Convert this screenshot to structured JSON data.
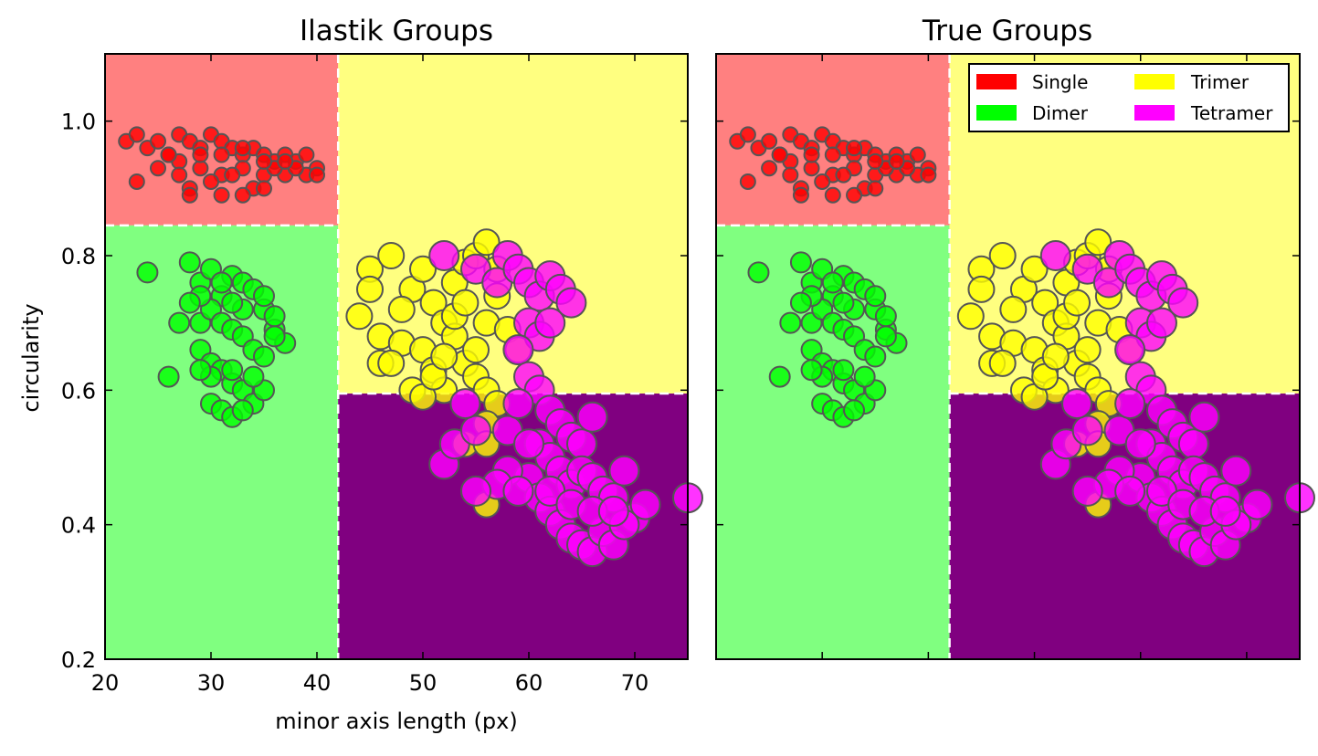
{
  "chart_data": [
    {
      "type": "scatter",
      "title": "Ilastik Groups",
      "xlabel": "minor axis length (px)",
      "ylabel": "circularity",
      "xlim": [
        20,
        75
      ],
      "ylim": [
        0.2,
        1.1
      ],
      "xticks": [
        "20",
        "30",
        "40",
        "50",
        "60",
        "70"
      ],
      "yticks": [
        "0.2",
        "0.4",
        "0.6",
        "0.8",
        "1.0"
      ],
      "grid": false,
      "thresholds": {
        "x": 42,
        "y_single": 0.845,
        "y_trimer": 0.595
      },
      "regions": [
        {
          "name": "Single",
          "color": "#ff8080"
        },
        {
          "name": "Dimer",
          "color": "#80ff80"
        },
        {
          "name": "Trimer",
          "color": "#ffff80"
        },
        {
          "name": "Tetramer",
          "color": "#800080"
        }
      ],
      "series": [
        {
          "name": "Single",
          "color": "#ff0000",
          "points": [
            [
              22,
              0.97
            ],
            [
              23,
              0.98
            ],
            [
              24,
              0.96
            ],
            [
              25,
              0.97
            ],
            [
              26,
              0.95
            ],
            [
              27,
              0.98
            ],
            [
              28,
              0.97
            ],
            [
              29,
              0.96
            ],
            [
              30,
              0.98
            ],
            [
              31,
              0.97
            ],
            [
              32,
              0.96
            ],
            [
              33,
              0.95
            ],
            [
              34,
              0.96
            ],
            [
              35,
              0.95
            ],
            [
              36,
              0.94
            ],
            [
              37,
              0.95
            ],
            [
              38,
              0.94
            ],
            [
              39,
              0.95
            ],
            [
              40,
              0.93
            ],
            [
              25,
              0.93
            ],
            [
              27,
              0.94
            ],
            [
              29,
              0.93
            ],
            [
              31,
              0.92
            ],
            [
              33,
              0.93
            ],
            [
              35,
              0.92
            ],
            [
              37,
              0.92
            ],
            [
              39,
              0.92
            ],
            [
              40,
              0.92
            ],
            [
              23,
              0.91
            ],
            [
              28,
              0.9
            ],
            [
              30,
              0.91
            ],
            [
              32,
              0.92
            ],
            [
              34,
              0.9
            ],
            [
              36,
              0.93
            ],
            [
              38,
              0.93
            ],
            [
              26,
              0.95
            ],
            [
              29,
              0.95
            ],
            [
              31,
              0.95
            ],
            [
              33,
              0.96
            ],
            [
              35,
              0.94
            ],
            [
              37,
              0.94
            ],
            [
              28,
              0.89
            ],
            [
              31,
              0.89
            ],
            [
              33,
              0.89
            ],
            [
              35,
              0.9
            ],
            [
              27,
              0.92
            ]
          ]
        },
        {
          "name": "Dimer",
          "color": "#00ff00",
          "points": [
            [
              24,
              0.775
            ],
            [
              26,
              0.62
            ],
            [
              27,
              0.7
            ],
            [
              28,
              0.79
            ],
            [
              29,
              0.76
            ],
            [
              30,
              0.78
            ],
            [
              31,
              0.74
            ],
            [
              32,
              0.77
            ],
            [
              33,
              0.76
            ],
            [
              34,
              0.75
            ],
            [
              35,
              0.72
            ],
            [
              36,
              0.69
            ],
            [
              37,
              0.67
            ],
            [
              29,
              0.66
            ],
            [
              30,
              0.64
            ],
            [
              31,
              0.63
            ],
            [
              32,
              0.61
            ],
            [
              33,
              0.6
            ],
            [
              34,
              0.58
            ],
            [
              35,
              0.6
            ],
            [
              30,
              0.58
            ],
            [
              31,
              0.57
            ],
            [
              32,
              0.56
            ],
            [
              33,
              0.57
            ],
            [
              29,
              0.7
            ],
            [
              30,
              0.72
            ],
            [
              31,
              0.7
            ],
            [
              32,
              0.69
            ],
            [
              33,
              0.68
            ],
            [
              34,
              0.66
            ],
            [
              35,
              0.65
            ],
            [
              36,
              0.68
            ],
            [
              30,
              0.62
            ],
            [
              32,
              0.63
            ],
            [
              34,
              0.62
            ],
            [
              29,
              0.74
            ],
            [
              31,
              0.76
            ],
            [
              33,
              0.72
            ],
            [
              35,
              0.74
            ],
            [
              28,
              0.73
            ],
            [
              29,
              0.63
            ],
            [
              36,
              0.71
            ],
            [
              32,
              0.73
            ]
          ]
        },
        {
          "name": "Trimer",
          "color": "#ffff00",
          "points": [
            [
              44,
              0.71
            ],
            [
              45,
              0.78
            ],
            [
              46,
              0.68
            ],
            [
              47,
              0.8
            ],
            [
              46,
              0.64
            ],
            [
              48,
              0.67
            ],
            [
              49,
              0.75
            ],
            [
              50,
              0.78
            ],
            [
              51,
              0.73
            ],
            [
              52,
              0.7
            ],
            [
              53,
              0.76
            ],
            [
              54,
              0.79
            ],
            [
              55,
              0.8
            ],
            [
              56,
              0.82
            ],
            [
              57,
              0.78
            ],
            [
              50,
              0.66
            ],
            [
              51,
              0.63
            ],
            [
              52,
              0.6
            ],
            [
              53,
              0.68
            ],
            [
              54,
              0.64
            ],
            [
              55,
              0.62
            ],
            [
              56,
              0.7
            ],
            [
              57,
              0.74
            ],
            [
              58,
              0.69
            ],
            [
              59,
              0.66
            ],
            [
              49,
              0.6
            ],
            [
              50,
              0.59
            ],
            [
              51,
              0.62
            ],
            [
              52,
              0.65
            ],
            [
              53,
              0.71
            ],
            [
              54,
              0.73
            ],
            [
              55,
              0.66
            ],
            [
              56,
              0.6
            ],
            [
              57,
              0.58
            ],
            [
              56,
              0.55
            ],
            [
              54,
              0.52
            ],
            [
              56,
              0.52
            ],
            [
              56,
              0.43
            ],
            [
              47,
              0.64
            ],
            [
              48,
              0.72
            ],
            [
              45,
              0.75
            ]
          ]
        },
        {
          "name": "Tetramer",
          "color": "#ff00ff",
          "points": [
            [
              52,
              0.8
            ],
            [
              55,
              0.78
            ],
            [
              57,
              0.76
            ],
            [
              58,
              0.8
            ],
            [
              59,
              0.78
            ],
            [
              60,
              0.76
            ],
            [
              61,
              0.74
            ],
            [
              62,
              0.77
            ],
            [
              63,
              0.75
            ],
            [
              64,
              0.73
            ],
            [
              60,
              0.7
            ],
            [
              61,
              0.68
            ],
            [
              62,
              0.7
            ],
            [
              59,
              0.66
            ],
            [
              60,
              0.62
            ],
            [
              61,
              0.6
            ],
            [
              62,
              0.57
            ],
            [
              63,
              0.55
            ],
            [
              64,
              0.53
            ],
            [
              65,
              0.52
            ],
            [
              66,
              0.56
            ],
            [
              61,
              0.52
            ],
            [
              62,
              0.5
            ],
            [
              63,
              0.48
            ],
            [
              64,
              0.46
            ],
            [
              65,
              0.48
            ],
            [
              66,
              0.47
            ],
            [
              67,
              0.45
            ],
            [
              68,
              0.44
            ],
            [
              69,
              0.48
            ],
            [
              60,
              0.47
            ],
            [
              61,
              0.44
            ],
            [
              62,
              0.42
            ],
            [
              63,
              0.4
            ],
            [
              64,
              0.38
            ],
            [
              65,
              0.37
            ],
            [
              66,
              0.36
            ],
            [
              67,
              0.39
            ],
            [
              68,
              0.37
            ],
            [
              70,
              0.41
            ],
            [
              69,
              0.4
            ],
            [
              71,
              0.43
            ],
            [
              58,
              0.48
            ],
            [
              57,
              0.46
            ],
            [
              59,
              0.45
            ],
            [
              55,
              0.45
            ],
            [
              52,
              0.49
            ],
            [
              53,
              0.52
            ],
            [
              55,
              0.54
            ],
            [
              58,
              0.54
            ],
            [
              60,
              0.52
            ],
            [
              62,
              0.45
            ],
            [
              64,
              0.43
            ],
            [
              66,
              0.42
            ],
            [
              68,
              0.42
            ],
            [
              75,
              0.44
            ],
            [
              54,
              0.58
            ],
            [
              59,
              0.58
            ]
          ]
        }
      ]
    },
    {
      "type": "scatter",
      "title": "True Groups",
      "xlim": [
        20,
        75
      ],
      "ylim": [
        0.2,
        1.1
      ],
      "grid": false,
      "legend": {
        "position": "top-right",
        "entries": [
          {
            "label": "Single",
            "color": "#ff0000"
          },
          {
            "label": "Trimer",
            "color": "#ffff00"
          },
          {
            "label": "Dimer",
            "color": "#00ff00"
          },
          {
            "label": "Tetramer",
            "color": "#ff00ff"
          }
        ]
      }
    }
  ]
}
